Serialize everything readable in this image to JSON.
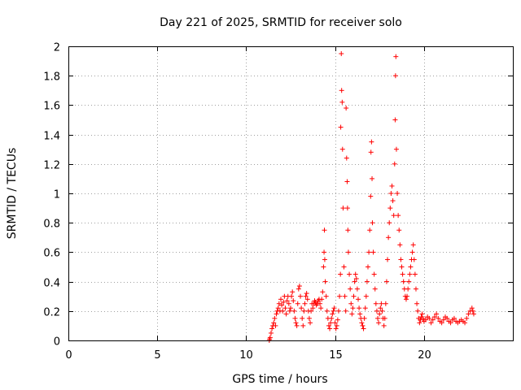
{
  "chart_data": {
    "type": "scatter",
    "title": "Day 221 of 2025, SRMTID for receiver solo",
    "xlabel": "GPS time / hours",
    "ylabel": "SRMTID / TECUs",
    "xlim": [
      0,
      25
    ],
    "ylim": [
      0,
      2
    ],
    "xticks": [
      0,
      5,
      10,
      15,
      20
    ],
    "xtick_labels": [
      "0",
      "5",
      "10",
      "15",
      "20"
    ],
    "yticks": [
      0,
      0.2,
      0.4,
      0.6,
      0.8,
      1,
      1.2,
      1.4,
      1.6,
      1.8,
      2
    ],
    "ytick_labels": [
      "0",
      "0.2",
      "0.4",
      "0.6",
      "0.8",
      "1",
      "1.2",
      "1.4",
      "1.6",
      "1.8",
      "2"
    ],
    "grid": true,
    "marker": "+",
    "color": "#ff0000",
    "series": [
      {
        "name": "SRMTID",
        "points": [
          [
            11.3,
            0.0
          ],
          [
            11.32,
            0.01
          ],
          [
            11.35,
            0.02
          ],
          [
            11.4,
            0.05
          ],
          [
            11.45,
            0.08
          ],
          [
            11.5,
            0.1
          ],
          [
            11.55,
            0.12
          ],
          [
            11.6,
            0.15
          ],
          [
            11.65,
            0.1
          ],
          [
            11.7,
            0.18
          ],
          [
            11.75,
            0.2
          ],
          [
            11.8,
            0.22
          ],
          [
            11.85,
            0.25
          ],
          [
            11.9,
            0.2
          ],
          [
            11.95,
            0.28
          ],
          [
            12.0,
            0.24
          ],
          [
            12.05,
            0.2
          ],
          [
            12.1,
            0.26
          ],
          [
            12.15,
            0.3
          ],
          [
            12.2,
            0.22
          ],
          [
            12.25,
            0.18
          ],
          [
            12.3,
            0.27
          ],
          [
            12.35,
            0.3
          ],
          [
            12.4,
            0.25
          ],
          [
            12.45,
            0.2
          ],
          [
            12.5,
            0.22
          ],
          [
            12.55,
            0.3
          ],
          [
            12.6,
            0.33
          ],
          [
            12.65,
            0.27
          ],
          [
            12.7,
            0.2
          ],
          [
            12.75,
            0.15
          ],
          [
            12.8,
            0.12
          ],
          [
            12.85,
            0.1
          ],
          [
            12.9,
            0.25
          ],
          [
            12.95,
            0.35
          ],
          [
            13.0,
            0.37
          ],
          [
            13.05,
            0.3
          ],
          [
            13.1,
            0.22
          ],
          [
            13.15,
            0.15
          ],
          [
            13.2,
            0.1
          ],
          [
            13.25,
            0.2
          ],
          [
            13.3,
            0.25
          ],
          [
            13.35,
            0.3
          ],
          [
            13.4,
            0.32
          ],
          [
            13.45,
            0.28
          ],
          [
            13.5,
            0.2
          ],
          [
            13.55,
            0.15
          ],
          [
            13.6,
            0.12
          ],
          [
            13.65,
            0.2
          ],
          [
            13.7,
            0.25
          ],
          [
            13.75,
            0.22
          ],
          [
            13.8,
            0.25
          ],
          [
            13.85,
            0.27
          ],
          [
            13.9,
            0.26
          ],
          [
            13.95,
            0.24
          ],
          [
            14.0,
            0.25
          ],
          [
            14.05,
            0.27
          ],
          [
            14.1,
            0.28
          ],
          [
            14.15,
            0.25
          ],
          [
            14.2,
            0.22
          ],
          [
            14.25,
            0.28
          ],
          [
            14.3,
            0.33
          ],
          [
            14.35,
            0.5
          ],
          [
            14.38,
            0.6
          ],
          [
            14.4,
            0.75
          ],
          [
            14.42,
            0.55
          ],
          [
            14.45,
            0.4
          ],
          [
            14.5,
            0.3
          ],
          [
            14.55,
            0.2
          ],
          [
            14.6,
            0.15
          ],
          [
            14.65,
            0.1
          ],
          [
            14.7,
            0.08
          ],
          [
            14.75,
            0.12
          ],
          [
            14.8,
            0.15
          ],
          [
            14.85,
            0.18
          ],
          [
            14.9,
            0.2
          ],
          [
            14.95,
            0.22
          ],
          [
            15.0,
            0.12
          ],
          [
            15.05,
            0.08
          ],
          [
            15.1,
            0.1
          ],
          [
            15.15,
            0.14
          ],
          [
            15.2,
            0.2
          ],
          [
            15.25,
            0.3
          ],
          [
            15.3,
            0.45
          ],
          [
            15.32,
            1.45
          ],
          [
            15.35,
            1.95
          ],
          [
            15.37,
            1.7
          ],
          [
            15.4,
            1.62
          ],
          [
            15.42,
            1.3
          ],
          [
            15.45,
            0.9
          ],
          [
            15.5,
            0.5
          ],
          [
            15.55,
            0.3
          ],
          [
            15.6,
            0.2
          ],
          [
            15.62,
            1.58
          ],
          [
            15.65,
            1.24
          ],
          [
            15.68,
            1.08
          ],
          [
            15.7,
            0.9
          ],
          [
            15.72,
            0.75
          ],
          [
            15.75,
            0.6
          ],
          [
            15.8,
            0.45
          ],
          [
            15.85,
            0.35
          ],
          [
            15.9,
            0.25
          ],
          [
            15.95,
            0.18
          ],
          [
            16.0,
            0.22
          ],
          [
            16.05,
            0.3
          ],
          [
            16.1,
            0.4
          ],
          [
            16.15,
            0.45
          ],
          [
            16.2,
            0.42
          ],
          [
            16.25,
            0.35
          ],
          [
            16.3,
            0.28
          ],
          [
            16.35,
            0.22
          ],
          [
            16.4,
            0.18
          ],
          [
            16.45,
            0.15
          ],
          [
            16.5,
            0.12
          ],
          [
            16.55,
            0.1
          ],
          [
            16.6,
            0.08
          ],
          [
            16.65,
            0.15
          ],
          [
            16.7,
            0.22
          ],
          [
            16.75,
            0.3
          ],
          [
            16.8,
            0.4
          ],
          [
            16.85,
            0.5
          ],
          [
            16.9,
            0.6
          ],
          [
            16.95,
            0.75
          ],
          [
            17.0,
            0.98
          ],
          [
            17.02,
            1.28
          ],
          [
            17.05,
            1.35
          ],
          [
            17.08,
            1.1
          ],
          [
            17.1,
            0.8
          ],
          [
            17.15,
            0.6
          ],
          [
            17.2,
            0.45
          ],
          [
            17.25,
            0.35
          ],
          [
            17.3,
            0.25
          ],
          [
            17.35,
            0.2
          ],
          [
            17.4,
            0.15
          ],
          [
            17.45,
            0.12
          ],
          [
            17.5,
            0.18
          ],
          [
            17.55,
            0.22
          ],
          [
            17.6,
            0.25
          ],
          [
            17.65,
            0.2
          ],
          [
            17.7,
            0.15
          ],
          [
            17.75,
            0.1
          ],
          [
            17.8,
            0.15
          ],
          [
            17.85,
            0.25
          ],
          [
            17.9,
            0.4
          ],
          [
            17.95,
            0.55
          ],
          [
            18.0,
            0.7
          ],
          [
            18.05,
            0.8
          ],
          [
            18.1,
            0.9
          ],
          [
            18.15,
            1.0
          ],
          [
            18.2,
            1.05
          ],
          [
            18.25,
            0.95
          ],
          [
            18.3,
            0.85
          ],
          [
            18.35,
            1.2
          ],
          [
            18.38,
            1.5
          ],
          [
            18.4,
            1.8
          ],
          [
            18.42,
            1.93
          ],
          [
            18.45,
            1.3
          ],
          [
            18.5,
            1.0
          ],
          [
            18.55,
            0.85
          ],
          [
            18.6,
            0.75
          ],
          [
            18.65,
            0.65
          ],
          [
            18.7,
            0.55
          ],
          [
            18.75,
            0.5
          ],
          [
            18.8,
            0.45
          ],
          [
            18.85,
            0.4
          ],
          [
            18.9,
            0.35
          ],
          [
            18.95,
            0.3
          ],
          [
            19.0,
            0.28
          ],
          [
            19.05,
            0.3
          ],
          [
            19.1,
            0.35
          ],
          [
            19.15,
            0.4
          ],
          [
            19.2,
            0.45
          ],
          [
            19.25,
            0.5
          ],
          [
            19.3,
            0.55
          ],
          [
            19.35,
            0.6
          ],
          [
            19.4,
            0.65
          ],
          [
            19.45,
            0.55
          ],
          [
            19.5,
            0.45
          ],
          [
            19.55,
            0.35
          ],
          [
            19.6,
            0.25
          ],
          [
            19.65,
            0.2
          ],
          [
            19.7,
            0.15
          ],
          [
            19.75,
            0.12
          ],
          [
            19.8,
            0.14
          ],
          [
            19.85,
            0.16
          ],
          [
            19.9,
            0.18
          ],
          [
            19.95,
            0.15
          ],
          [
            20.0,
            0.13
          ],
          [
            20.1,
            0.14
          ],
          [
            20.2,
            0.16
          ],
          [
            20.3,
            0.15
          ],
          [
            20.4,
            0.12
          ],
          [
            20.5,
            0.14
          ],
          [
            20.6,
            0.16
          ],
          [
            20.7,
            0.18
          ],
          [
            20.8,
            0.15
          ],
          [
            20.9,
            0.13
          ],
          [
            21.0,
            0.12
          ],
          [
            21.1,
            0.14
          ],
          [
            21.2,
            0.16
          ],
          [
            21.3,
            0.15
          ],
          [
            21.4,
            0.13
          ],
          [
            21.5,
            0.12
          ],
          [
            21.6,
            0.14
          ],
          [
            21.7,
            0.15
          ],
          [
            21.8,
            0.13
          ],
          [
            21.9,
            0.12
          ],
          [
            22.0,
            0.13
          ],
          [
            22.1,
            0.14
          ],
          [
            22.2,
            0.13
          ],
          [
            22.3,
            0.12
          ],
          [
            22.4,
            0.15
          ],
          [
            22.5,
            0.18
          ],
          [
            22.6,
            0.2
          ],
          [
            22.7,
            0.22
          ],
          [
            22.75,
            0.2
          ],
          [
            22.8,
            0.18
          ]
        ]
      }
    ]
  }
}
